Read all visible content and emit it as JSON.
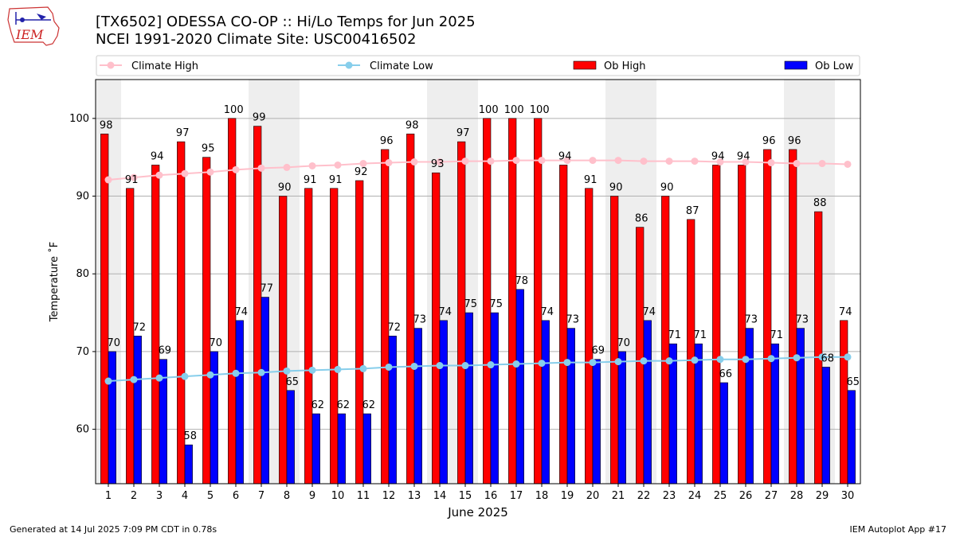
{
  "header": {
    "title_line1": "[TX6502] ODESSA CO-OP :: Hi/Lo Temps for Jun 2025",
    "title_line2": "NCEI 1991-2020 Climate Site: USC00416502",
    "logo_text": "IEM"
  },
  "footer": {
    "generated": "Generated at 14 Jul 2025 7:09 PM CDT in 0.78s",
    "app": "IEM Autoplot App #17"
  },
  "colors": {
    "ob_high": "#ff0000",
    "ob_low": "#0000ff",
    "climate_high": "#ffc0cb",
    "climate_low": "#87ceeb",
    "weekend_shade": "#eeeeee",
    "grid": "#b0b0b0"
  },
  "chart_data": {
    "type": "bar",
    "xlabel": "June 2025",
    "ylabel": "Temperature ˚F",
    "ylim": [
      53,
      105
    ],
    "yticks": [
      60,
      70,
      80,
      90,
      100
    ],
    "grid": "horizontal",
    "legend_placement": "top",
    "categories": [
      "1",
      "2",
      "3",
      "4",
      "5",
      "6",
      "7",
      "8",
      "9",
      "10",
      "11",
      "12",
      "13",
      "14",
      "15",
      "16",
      "17",
      "18",
      "19",
      "20",
      "21",
      "22",
      "23",
      "24",
      "25",
      "26",
      "27",
      "28",
      "29",
      "30"
    ],
    "shaded_days": [
      1,
      7,
      8,
      14,
      15,
      21,
      22,
      28,
      29
    ],
    "series": [
      {
        "name": "Ob High",
        "kind": "bar",
        "values": [
          98,
          91,
          94,
          97,
          95,
          100,
          99,
          90,
          91,
          91,
          92,
          96,
          98,
          93,
          97,
          100,
          100,
          100,
          94,
          91,
          90,
          86,
          90,
          87,
          94,
          94,
          96,
          96,
          88,
          74
        ]
      },
      {
        "name": "Ob Low",
        "kind": "bar",
        "values": [
          70,
          72,
          69,
          58,
          70,
          74,
          77,
          65,
          62,
          62,
          62,
          72,
          73,
          74,
          75,
          75,
          78,
          74,
          73,
          69,
          70,
          74,
          71,
          71,
          66,
          73,
          71,
          73,
          68,
          65
        ]
      },
      {
        "name": "Climate High",
        "kind": "line",
        "values": [
          92.1,
          92.4,
          92.7,
          92.9,
          93.1,
          93.4,
          93.6,
          93.7,
          93.9,
          94.0,
          94.2,
          94.3,
          94.4,
          94.4,
          94.5,
          94.5,
          94.6,
          94.6,
          94.6,
          94.6,
          94.6,
          94.5,
          94.5,
          94.5,
          94.4,
          94.4,
          94.3,
          94.2,
          94.2,
          94.1
        ]
      },
      {
        "name": "Climate Low",
        "kind": "line",
        "values": [
          66.2,
          66.4,
          66.6,
          66.8,
          67.0,
          67.2,
          67.3,
          67.5,
          67.6,
          67.7,
          67.8,
          68.0,
          68.1,
          68.2,
          68.2,
          68.3,
          68.4,
          68.5,
          68.6,
          68.6,
          68.7,
          68.8,
          68.8,
          68.9,
          69.0,
          69.0,
          69.1,
          69.2,
          69.3,
          69.3
        ]
      }
    ]
  }
}
